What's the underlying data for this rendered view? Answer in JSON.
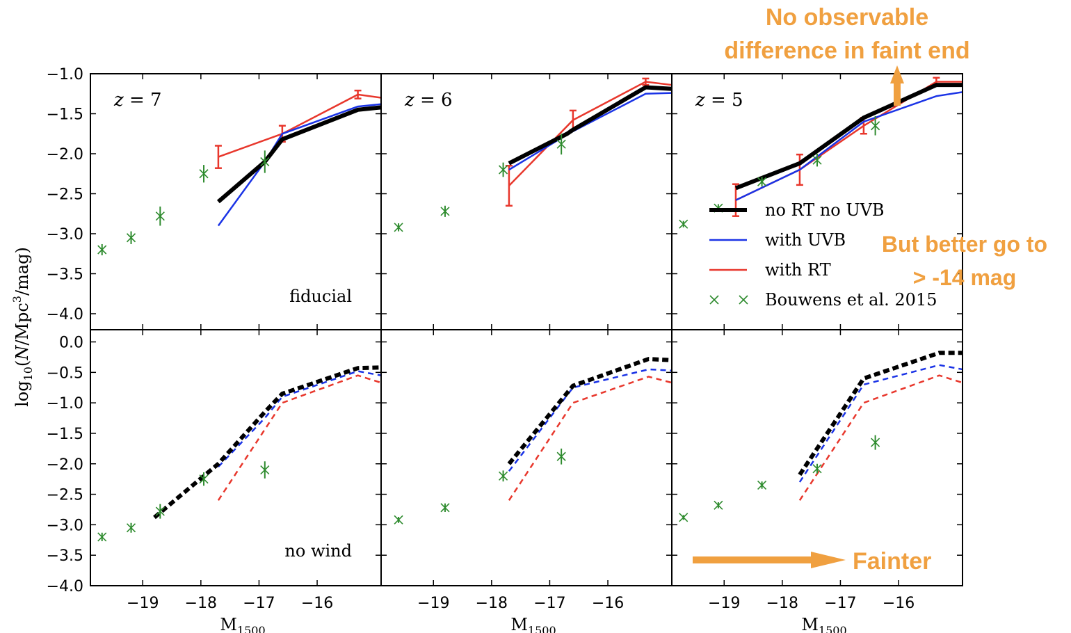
{
  "chart_data": {
    "type": "line",
    "xlabel_base": "M",
    "xlabel_sub": "1500",
    "ylabel": "log10(N/Mpc^3/mag)",
    "xlim": [
      -19.9,
      -14.9
    ],
    "x_ticks": [
      -19,
      -18,
      -17,
      -16
    ],
    "x_tick_labels": [
      "−19",
      "−18",
      "−17",
      "−16"
    ],
    "rows": [
      {
        "label": "fiducial",
        "ylim": [
          -4.2,
          -1.0
        ],
        "y_ticks": [
          -1.0,
          -1.5,
          -2.0,
          -2.5,
          -3.0,
          -3.5,
          -4.0
        ],
        "y_tick_labels": [
          "−1.0",
          "−1.5",
          "−2.0",
          "−2.5",
          "−3.0",
          "−3.5",
          "−4.0"
        ],
        "linestyle": "solid"
      },
      {
        "label": "no wind",
        "ylim": [
          -4.0,
          0.2
        ],
        "y_ticks": [
          0.0,
          -0.5,
          -1.0,
          -1.5,
          -2.0,
          -2.5,
          -3.0,
          -3.5,
          -4.0
        ],
        "y_tick_labels": [
          "0.0",
          "−0.5",
          "−1.0",
          "−1.5",
          "−2.0",
          "−2.5",
          "−3.0",
          "−3.5",
          "−4.0"
        ],
        "linestyle": "dashed"
      }
    ],
    "columns": [
      {
        "z_label": "z = 7"
      },
      {
        "z_label": "z = 6"
      },
      {
        "z_label": "z = 5"
      }
    ],
    "legend": {
      "placement": "top-right panel, lower right",
      "entries": [
        {
          "label": "no RT no UVB",
          "color": "#000000",
          "style": "line-thick"
        },
        {
          "label": "with UVB",
          "color": "#1a33e6",
          "style": "line"
        },
        {
          "label": "with RT",
          "color": "#e8372c",
          "style": "line"
        },
        {
          "label": "Bouwens et al.  2015",
          "color": "#2e8b2e",
          "style": "marker-x"
        }
      ]
    },
    "panels": [
      {
        "row": 0,
        "col": 0,
        "series": [
          {
            "name": "no RT no UVB",
            "color": "#000000",
            "x": [
              -17.7,
              -16.9,
              -16.6,
              -15.3,
              -14.9
            ],
            "y": [
              -2.6,
              -2.1,
              -1.82,
              -1.45,
              -1.42
            ]
          },
          {
            "name": "with UVB",
            "color": "#1a33e6",
            "x": [
              -17.7,
              -16.9,
              -16.6,
              -15.3,
              -14.9
            ],
            "y": [
              -2.9,
              -2.1,
              -1.75,
              -1.41,
              -1.38
            ]
          },
          {
            "name": "with RT",
            "color": "#e8372c",
            "x": [
              -17.7,
              -16.6,
              -15.3,
              -14.9
            ],
            "y": [
              -2.04,
              -1.75,
              -1.26,
              -1.3
            ],
            "yerr": [
              0.14,
              0.1,
              0.05,
              0
            ]
          }
        ],
        "bouwens": {
          "x": [
            -19.7,
            -19.2,
            -18.7,
            -17.95,
            -16.9
          ],
          "y": [
            -3.2,
            -3.05,
            -2.78,
            -2.25,
            -2.1
          ],
          "yerr": [
            0.07,
            0.08,
            0.12,
            0.11,
            0.14
          ]
        }
      },
      {
        "row": 0,
        "col": 1,
        "series": [
          {
            "name": "no RT no UVB",
            "color": "#000000",
            "x": [
              -17.7,
              -16.7,
              -16.6,
              -15.35,
              -14.9
            ],
            "y": [
              -2.12,
              -1.75,
              -1.7,
              -1.17,
              -1.19
            ]
          },
          {
            "name": "with UVB",
            "color": "#1a33e6",
            "x": [
              -17.7,
              -16.7,
              -16.6,
              -15.35,
              -14.9
            ],
            "y": [
              -2.2,
              -1.76,
              -1.72,
              -1.25,
              -1.24
            ]
          },
          {
            "name": "with RT",
            "color": "#e8372c",
            "x": [
              -17.7,
              -16.6,
              -15.35,
              -14.9
            ],
            "y": [
              -2.4,
              -1.58,
              -1.1,
              -1.14
            ],
            "yerr": [
              0.25,
              0.12,
              0.04,
              0
            ]
          }
        ],
        "bouwens": {
          "x": [
            -19.6,
            -18.8,
            -17.8,
            -16.8
          ],
          "y": [
            -2.92,
            -2.72,
            -2.2,
            -1.88
          ],
          "yerr": [
            0.05,
            0.07,
            0.09,
            0.13
          ]
        }
      },
      {
        "row": 0,
        "col": 2,
        "series": [
          {
            "name": "no RT no UVB",
            "color": "#000000",
            "x": [
              -18.8,
              -17.7,
              -16.6,
              -15.35,
              -14.9
            ],
            "y": [
              -2.43,
              -2.12,
              -1.55,
              -1.14,
              -1.14
            ]
          },
          {
            "name": "with UVB",
            "color": "#1a33e6",
            "x": [
              -18.8,
              -17.7,
              -16.6,
              -15.35,
              -14.9
            ],
            "y": [
              -2.58,
              -2.2,
              -1.6,
              -1.28,
              -1.23
            ]
          },
          {
            "name": "with RT",
            "color": "#e8372c",
            "x": [
              -18.8,
              -17.7,
              -16.6,
              -15.35,
              -14.9
            ],
            "y": [
              -2.58,
              -2.2,
              -1.65,
              -1.1,
              -1.1
            ],
            "yerr": [
              0.2,
              0.19,
              0.1,
              0.05,
              0
            ]
          }
        ],
        "bouwens": {
          "x": [
            -19.7,
            -19.1,
            -18.35,
            -17.4,
            -16.4
          ],
          "y": [
            -2.88,
            -2.68,
            -2.35,
            -2.08,
            -1.65
          ],
          "yerr": [
            0.04,
            0.05,
            0.06,
            0.08,
            0.12
          ]
        }
      },
      {
        "row": 1,
        "col": 0,
        "series": [
          {
            "name": "no RT no UVB",
            "color": "#000000",
            "x": [
              -18.8,
              -17.7,
              -16.9,
              -16.6,
              -15.3,
              -14.9
            ],
            "y": [
              -2.88,
              -2.0,
              -1.15,
              -0.85,
              -0.43,
              -0.42
            ]
          },
          {
            "name": "with UVB",
            "color": "#1a33e6",
            "x": [
              -17.7,
              -16.9,
              -16.6,
              -15.3,
              -14.9
            ],
            "y": [
              -2.05,
              -1.25,
              -0.9,
              -0.48,
              -0.55
            ]
          },
          {
            "name": "with RT",
            "color": "#e8372c",
            "x": [
              -17.7,
              -16.6,
              -15.3,
              -14.9
            ],
            "y": [
              -2.6,
              -1.0,
              -0.55,
              -0.67
            ]
          }
        ],
        "bouwens": {
          "x": [
            -19.7,
            -19.2,
            -18.7,
            -17.95,
            -16.9
          ],
          "y": [
            -3.2,
            -3.05,
            -2.78,
            -2.25,
            -2.1
          ],
          "yerr": [
            0.07,
            0.08,
            0.12,
            0.11,
            0.14
          ]
        }
      },
      {
        "row": 1,
        "col": 1,
        "series": [
          {
            "name": "no RT no UVB",
            "color": "#000000",
            "x": [
              -17.7,
              -16.6,
              -15.3,
              -14.9
            ],
            "y": [
              -2.0,
              -0.72,
              -0.28,
              -0.3
            ]
          },
          {
            "name": "with UVB",
            "color": "#1a33e6",
            "x": [
              -17.7,
              -16.6,
              -15.3,
              -14.9
            ],
            "y": [
              -2.12,
              -0.75,
              -0.45,
              -0.47
            ]
          },
          {
            "name": "with RT",
            "color": "#e8372c",
            "x": [
              -17.7,
              -16.6,
              -15.3,
              -14.9
            ],
            "y": [
              -2.6,
              -1.0,
              -0.57,
              -0.67
            ]
          }
        ],
        "bouwens": {
          "x": [
            -19.6,
            -18.8,
            -17.8,
            -16.8
          ],
          "y": [
            -2.92,
            -2.72,
            -2.2,
            -1.88
          ],
          "yerr": [
            0.05,
            0.07,
            0.09,
            0.13
          ]
        }
      },
      {
        "row": 1,
        "col": 2,
        "series": [
          {
            "name": "no RT no UVB",
            "color": "#000000",
            "x": [
              -17.7,
              -16.6,
              -15.3,
              -14.9
            ],
            "y": [
              -2.18,
              -0.6,
              -0.18,
              -0.18
            ]
          },
          {
            "name": "with UVB",
            "color": "#1a33e6",
            "x": [
              -17.7,
              -16.6,
              -15.3,
              -14.9
            ],
            "y": [
              -2.3,
              -0.7,
              -0.38,
              -0.45
            ]
          },
          {
            "name": "with RT",
            "color": "#e8372c",
            "x": [
              -17.7,
              -16.6,
              -15.3,
              -14.9
            ],
            "y": [
              -2.6,
              -1.0,
              -0.55,
              -0.67
            ]
          }
        ],
        "bouwens": {
          "x": [
            -19.7,
            -19.1,
            -18.35,
            -17.4,
            -16.4
          ],
          "y": [
            -2.88,
            -2.68,
            -2.35,
            -2.08,
            -1.65
          ],
          "yerr": [
            0.04,
            0.05,
            0.06,
            0.08,
            0.12
          ]
        }
      }
    ]
  },
  "annotations": {
    "faint_end_line1": "No observable",
    "faint_end_line2": "difference in faint end",
    "better_line1": "But better go to",
    "better_line2": "> -14 mag",
    "fainter": "Fainter",
    "color": "#f0a040"
  }
}
